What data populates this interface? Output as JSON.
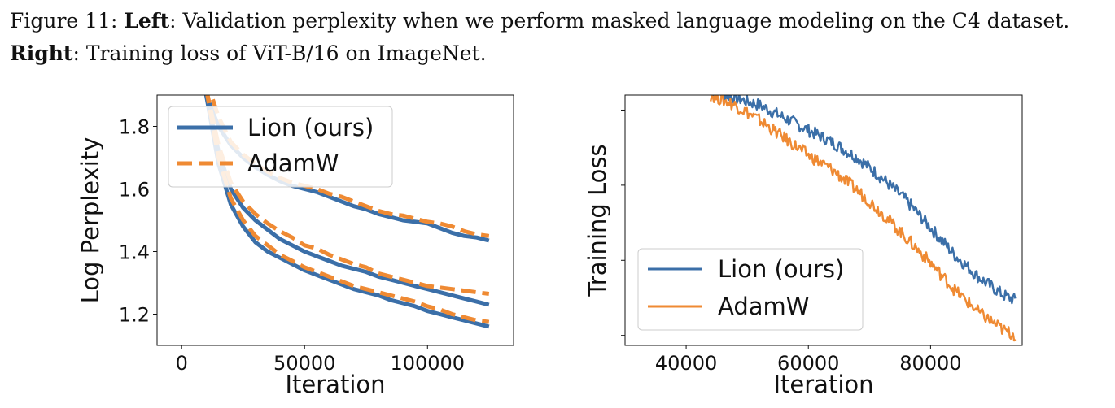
{
  "caption": {
    "prefix": "Figure 11: ",
    "left_label": "Left",
    "left_text": ": Validation perplexity when we perform masked language modeling on the C4 dataset. ",
    "right_label": "Right",
    "right_text": ": Training loss of ViT-B/16 on ImageNet."
  },
  "chart_data": [
    {
      "type": "line",
      "title": "",
      "xlabel": "Iteration",
      "ylabel": "Log Perplexity",
      "xlim": [
        -10000,
        135000
      ],
      "ylim": [
        1.1,
        1.9
      ],
      "xticks": [
        0,
        50000,
        100000
      ],
      "xtick_labels": [
        "0",
        "50000",
        "100000"
      ],
      "yticks": [
        1.2,
        1.4,
        1.6,
        1.8
      ],
      "ytick_labels": [
        "1.2",
        "1.4",
        "1.6",
        "1.8"
      ],
      "legend": "top-left",
      "colors": {
        "lion": "#3b6fa8",
        "adamw": "#ef8a33"
      },
      "series": [
        {
          "name": "Lion (ours)",
          "style": "solid",
          "x": [
            10000,
            15000,
            20000,
            25000,
            30000,
            35000,
            40000,
            45000,
            50000,
            55000,
            60000,
            65000,
            70000,
            75000,
            80000,
            85000,
            90000,
            95000,
            100000,
            105000,
            110000,
            115000,
            120000,
            125000
          ],
          "values": [
            1.9,
            1.8,
            1.74,
            1.7,
            1.67,
            1.645,
            1.625,
            1.61,
            1.6,
            1.59,
            1.575,
            1.56,
            1.545,
            1.535,
            1.52,
            1.51,
            1.5,
            1.495,
            1.49,
            1.475,
            1.46,
            1.45,
            1.445,
            1.435
          ]
        },
        {
          "name": "AdamW",
          "style": "dashed",
          "x": [
            10000,
            15000,
            20000,
            25000,
            30000,
            35000,
            40000,
            45000,
            50000,
            55000,
            60000,
            65000,
            70000,
            75000,
            80000,
            85000,
            90000,
            95000,
            100000,
            105000,
            110000,
            115000,
            120000,
            125000
          ],
          "values": [
            1.95,
            1.83,
            1.75,
            1.71,
            1.68,
            1.655,
            1.635,
            1.62,
            1.61,
            1.6,
            1.585,
            1.575,
            1.56,
            1.545,
            1.53,
            1.52,
            1.515,
            1.505,
            1.495,
            1.49,
            1.48,
            1.465,
            1.455,
            1.45
          ]
        },
        {
          "name": "",
          "style": "solid",
          "x": [
            10000,
            15000,
            20000,
            25000,
            30000,
            35000,
            40000,
            45000,
            50000,
            55000,
            60000,
            65000,
            70000,
            75000,
            80000,
            85000,
            90000,
            95000,
            100000,
            105000,
            110000,
            115000,
            120000,
            125000
          ],
          "values": [
            1.9,
            1.72,
            1.6,
            1.54,
            1.5,
            1.47,
            1.44,
            1.42,
            1.4,
            1.385,
            1.37,
            1.355,
            1.345,
            1.335,
            1.32,
            1.31,
            1.3,
            1.29,
            1.28,
            1.27,
            1.26,
            1.25,
            1.24,
            1.23
          ]
        },
        {
          "name": "",
          "style": "dashed",
          "x": [
            10000,
            15000,
            20000,
            25000,
            30000,
            35000,
            40000,
            45000,
            50000,
            55000,
            60000,
            65000,
            70000,
            75000,
            80000,
            85000,
            90000,
            95000,
            100000,
            105000,
            110000,
            115000,
            120000,
            125000
          ],
          "values": [
            1.92,
            1.74,
            1.62,
            1.56,
            1.52,
            1.49,
            1.465,
            1.445,
            1.42,
            1.41,
            1.39,
            1.375,
            1.36,
            1.35,
            1.33,
            1.32,
            1.31,
            1.3,
            1.29,
            1.285,
            1.28,
            1.275,
            1.27,
            1.265
          ]
        },
        {
          "name": "",
          "style": "solid",
          "x": [
            10000,
            15000,
            20000,
            25000,
            30000,
            35000,
            40000,
            45000,
            50000,
            55000,
            60000,
            65000,
            70000,
            75000,
            80000,
            85000,
            90000,
            95000,
            100000,
            105000,
            110000,
            115000,
            120000,
            125000
          ],
          "values": [
            1.9,
            1.68,
            1.55,
            1.48,
            1.43,
            1.4,
            1.38,
            1.36,
            1.34,
            1.325,
            1.31,
            1.295,
            1.28,
            1.27,
            1.26,
            1.245,
            1.235,
            1.225,
            1.21,
            1.2,
            1.19,
            1.18,
            1.17,
            1.16
          ]
        },
        {
          "name": "",
          "style": "dashed",
          "x": [
            10000,
            15000,
            20000,
            25000,
            30000,
            35000,
            40000,
            45000,
            50000,
            55000,
            60000,
            65000,
            70000,
            75000,
            80000,
            85000,
            90000,
            95000,
            100000,
            105000,
            110000,
            115000,
            120000,
            125000
          ],
          "values": [
            1.92,
            1.7,
            1.57,
            1.5,
            1.45,
            1.42,
            1.39,
            1.37,
            1.35,
            1.335,
            1.32,
            1.305,
            1.29,
            1.28,
            1.27,
            1.26,
            1.25,
            1.24,
            1.225,
            1.215,
            1.2,
            1.19,
            1.18,
            1.175
          ]
        }
      ]
    },
    {
      "type": "line",
      "title": "",
      "xlabel": "Iteration",
      "ylabel": "Training Loss",
      "xlim": [
        30000,
        95000
      ],
      "ylim": [
        0,
        1
      ],
      "xticks": [
        40000,
        60000,
        80000
      ],
      "xtick_labels": [
        "40000",
        "60000",
        "80000"
      ],
      "yticks_unlabeled": [
        0.04,
        0.34,
        0.64,
        0.94
      ],
      "legend": "bottom-left",
      "colors": {
        "lion": "#3b6fa8",
        "adamw": "#ef8a33"
      },
      "series": [
        {
          "name": "Lion (ours)",
          "x": [
            44000,
            48000,
            52000,
            56000,
            60000,
            64000,
            68000,
            72000,
            76000,
            80000,
            84000,
            88000,
            92000,
            94000
          ],
          "values": [
            1.02,
            0.99,
            0.96,
            0.91,
            0.86,
            0.81,
            0.75,
            0.67,
            0.58,
            0.47,
            0.36,
            0.27,
            0.2,
            0.18
          ],
          "noise": 0.025
        },
        {
          "name": "AdamW",
          "x": [
            44000,
            48000,
            52000,
            56000,
            60000,
            64000,
            68000,
            72000,
            76000,
            80000,
            84000,
            88000,
            92000,
            94000
          ],
          "values": [
            1.0,
            0.96,
            0.9,
            0.83,
            0.76,
            0.7,
            0.62,
            0.53,
            0.43,
            0.33,
            0.22,
            0.13,
            0.06,
            0.04
          ],
          "noise": 0.025
        }
      ]
    }
  ]
}
